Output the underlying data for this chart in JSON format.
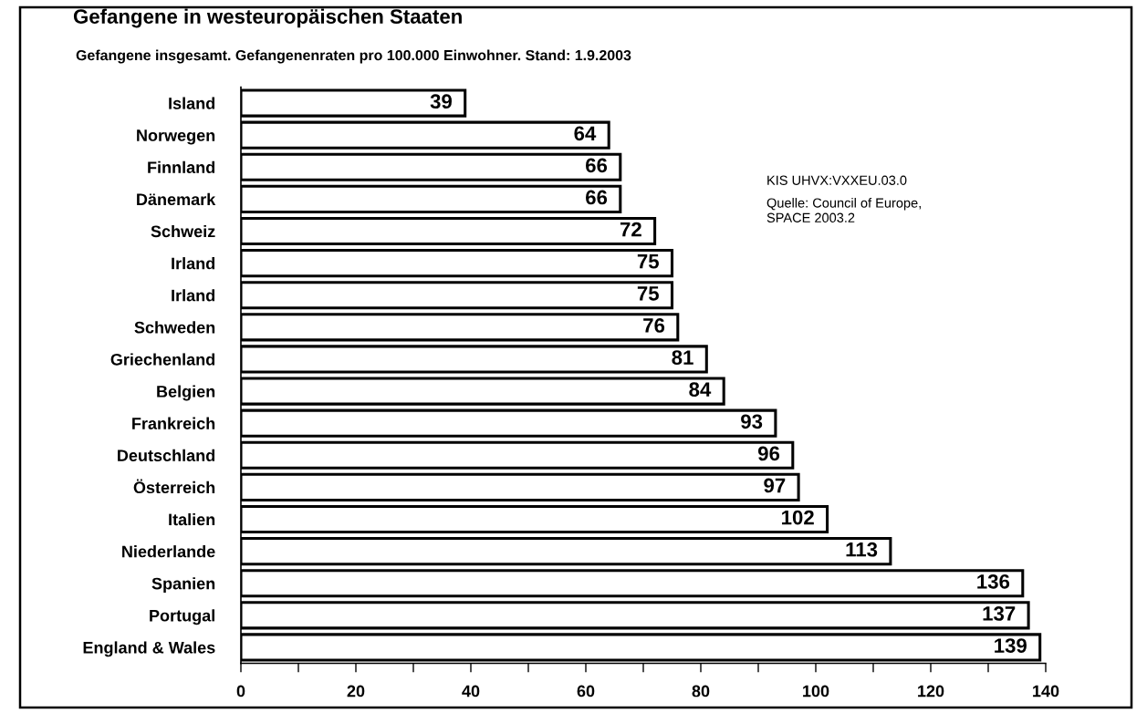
{
  "chart_data": {
    "type": "bar",
    "orientation": "horizontal",
    "title": "Gefangene in westeuropäischen Staaten",
    "subtitle": "Gefangene insgesamt. Gefangenenraten pro 100.000 Einwohner. Stand: 1.9.2003",
    "categories": [
      "Island",
      "Norwegen",
      "Finnland",
      "Dänemark",
      "Schweiz",
      "Irland",
      "Irland",
      "Schweden",
      "Griechenland",
      "Belgien",
      "Frankreich",
      "Deutschland",
      "Österreich",
      "Italien",
      "Niederlande",
      "Spanien",
      "Portugal",
      "England & Wales"
    ],
    "values": [
      39,
      64,
      66,
      66,
      72,
      75,
      75,
      76,
      81,
      84,
      93,
      96,
      97,
      102,
      113,
      136,
      137,
      139
    ],
    "color": "#ffffff",
    "xlim": [
      0,
      140
    ],
    "xticks": [
      0,
      {
        "value": 10,
        "label": null
      },
      20,
      {
        "value": 30,
        "label": null
      },
      40,
      {
        "value": 50,
        "label": null
      },
      60,
      {
        "value": 70,
        "label": null
      },
      80,
      {
        "value": 90,
        "label": null
      },
      100,
      {
        "value": 110,
        "label": null
      },
      120,
      {
        "value": 130,
        "label": null
      },
      140
    ],
    "data_labels": true,
    "grid": false,
    "legend": false,
    "annotations": [
      "KIS UHVX:VXXEU.03.0",
      "Quelle: Council of Europe,\nSPACE 2003.2"
    ]
  }
}
